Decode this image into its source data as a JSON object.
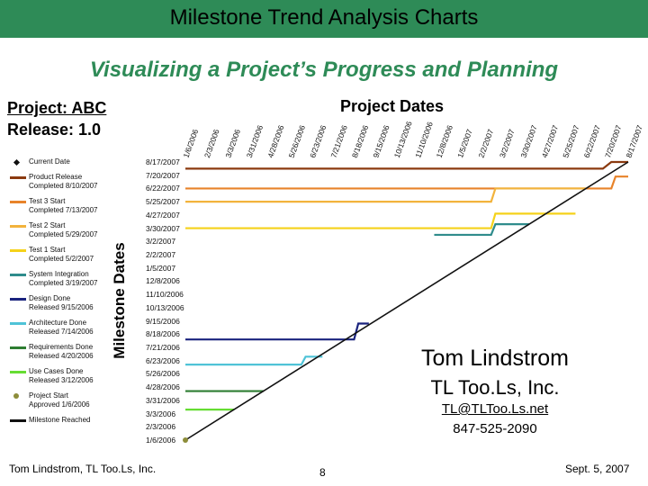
{
  "slide": {
    "title": "Milestone Trend Analysis Charts",
    "subtitle": "Visualizing a Project’s Progress and Planning",
    "project_label": "Project: ABC",
    "release_label": "Release: 1.0",
    "dates_title": "Project Dates",
    "contact_name": "Tom Lindstrom",
    "contact_company": "TL Too.Ls, Inc.",
    "contact_email": "TL@TLToo.Ls.net",
    "contact_phone": "847-525-2090",
    "footer_left": "Tom Lindstrom, TL Too.Ls, Inc.",
    "page_number": "8",
    "footer_date": "Sept. 5, 2007",
    "colors": {
      "title_bar": "#2e8b57",
      "subtitle": "#2e8b57"
    }
  },
  "chart_data": {
    "type": "line",
    "title": "Project Dates",
    "xlabel": "Project Dates",
    "ylabel": "Milestone Dates",
    "x_ticks": [
      "1/6/2006",
      "2/3/2006",
      "3/3/2006",
      "3/31/2006",
      "4/28/2006",
      "5/26/2006",
      "6/23/2006",
      "7/21/2006",
      "8/18/2006",
      "9/15/2006",
      "10/13/2006",
      "11/10/2006",
      "12/8/2006",
      "1/5/2007",
      "2/2/2007",
      "3/2/2007",
      "3/30/2007",
      "4/27/2007",
      "5/25/2007",
      "6/22/2007",
      "7/20/2007",
      "8/17/2007"
    ],
    "y_ticks": [
      "8/17/2007",
      "7/20/2007",
      "6/22/2007",
      "5/25/2007",
      "4/27/2007",
      "3/30/2007",
      "3/2/2007",
      "2/2/2007",
      "1/5/2007",
      "12/8/2006",
      "11/10/2006",
      "10/13/2006",
      "9/15/2006",
      "8/18/2006",
      "7/21/2006",
      "6/23/2006",
      "5/26/2006",
      "4/28/2006",
      "3/31/2006",
      "3/3/2006",
      "2/3/2006",
      "1/6/2006"
    ],
    "legend": [
      {
        "label": "Current Date",
        "color": "#111111",
        "marker": "diamond"
      },
      {
        "label": "Product Release\nCompleted 8/10/2007",
        "color": "#8b3a0f"
      },
      {
        "label": "Test 3 Start\nCompleted 7/13/2007",
        "color": "#e8832a"
      },
      {
        "label": "Test 2 Start\nCompleted 5/29/2007",
        "color": "#f2b33c"
      },
      {
        "label": "Test 1 Start\nCompleted 5/2/2007",
        "color": "#f5d21a"
      },
      {
        "label": "System Integration\nCompleted 3/19/2007",
        "color": "#2f8c8c"
      },
      {
        "label": "Design Done\nReleased 9/15/2006",
        "color": "#1a237e"
      },
      {
        "label": "Architecture Done\nReleased 7/14/2006",
        "color": "#4fc3d7"
      },
      {
        "label": "Requirements Done\nReleased 4/20/2006",
        "color": "#2e7d32"
      },
      {
        "label": "Use Cases Done\nReleased 3/12/2006",
        "color": "#66dd33"
      },
      {
        "label": "Project Start\nApproved 1/6/2006",
        "color": "#8d8d3a",
        "marker": "circle"
      },
      {
        "label": "Milestone Reached",
        "color": "#111111"
      }
    ],
    "series": [
      {
        "name": "Product Release",
        "color": "#8b3a0f",
        "points": [
          [
            0,
            20.5
          ],
          [
            19.8,
            20.5
          ],
          [
            20.2,
            21.0
          ],
          [
            21.0,
            21.0
          ]
        ]
      },
      {
        "name": "Test 3 Start",
        "color": "#e8832a",
        "points": [
          [
            0,
            19.0
          ],
          [
            20.2,
            19.0
          ],
          [
            20.4,
            19.9
          ],
          [
            21.0,
            19.9
          ]
        ]
      },
      {
        "name": "Test 2 Start",
        "color": "#f2b33c",
        "points": [
          [
            0,
            18.0
          ],
          [
            14.5,
            18.0
          ],
          [
            14.7,
            19.0
          ],
          [
            19.0,
            19.0
          ]
        ]
      },
      {
        "name": "Test 1 Start",
        "color": "#f5d21a",
        "points": [
          [
            0,
            16.0
          ],
          [
            14.5,
            16.0
          ],
          [
            14.7,
            17.1
          ],
          [
            18.5,
            17.1
          ]
        ]
      },
      {
        "name": "System Integration",
        "color": "#2f8c8c",
        "points": [
          [
            11.8,
            15.5
          ],
          [
            14.5,
            15.5
          ],
          [
            14.7,
            16.3
          ],
          [
            16.3,
            16.3
          ]
        ]
      },
      {
        "name": "Design Done",
        "color": "#1a237e",
        "points": [
          [
            0,
            7.6
          ],
          [
            8.0,
            7.6
          ],
          [
            8.2,
            8.8
          ],
          [
            8.7,
            8.8
          ]
        ]
      },
      {
        "name": "Architecture Done",
        "color": "#4fc3d7",
        "points": [
          [
            0,
            5.7
          ],
          [
            5.5,
            5.7
          ],
          [
            5.7,
            6.3
          ],
          [
            6.5,
            6.3
          ]
        ]
      },
      {
        "name": "Requirements Done",
        "color": "#2e7d32",
        "points": [
          [
            0,
            3.7
          ],
          [
            3.7,
            3.7
          ]
        ]
      },
      {
        "name": "Use Cases Done",
        "color": "#66dd33",
        "points": [
          [
            0,
            2.3
          ],
          [
            2.3,
            2.3
          ]
        ]
      },
      {
        "name": "Milestone Reached",
        "color": "#111111",
        "points": [
          [
            0,
            0
          ],
          [
            21,
            21
          ]
        ]
      }
    ],
    "xlim": [
      0,
      21
    ],
    "ylim": [
      0,
      21
    ]
  }
}
